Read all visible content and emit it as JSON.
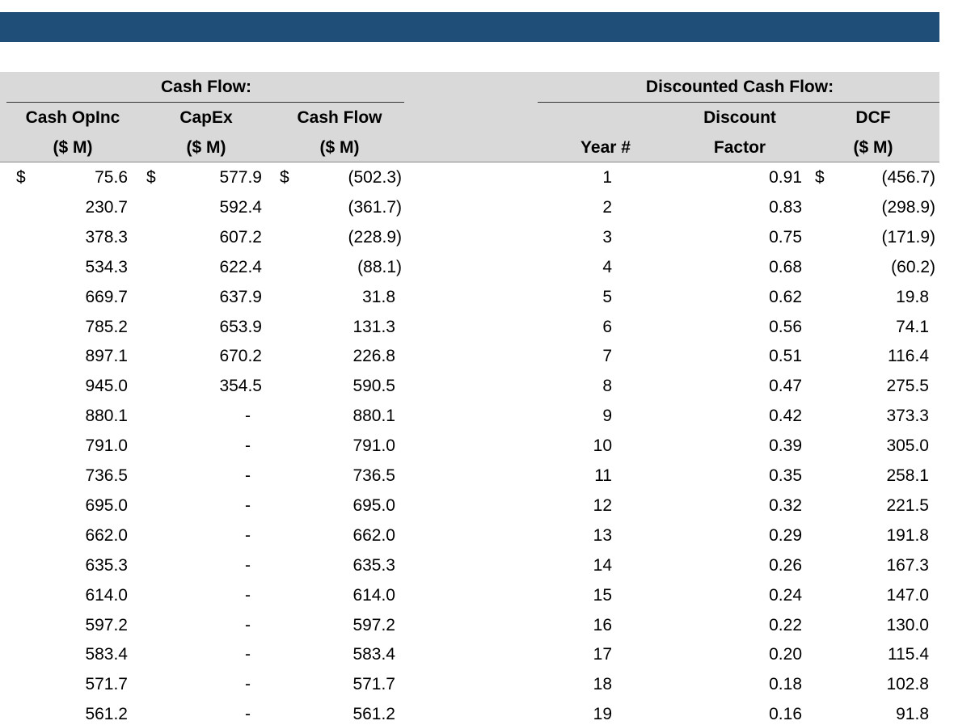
{
  "header": {
    "groups": [
      "Cash Flow:",
      "Discounted Cash Flow:"
    ]
  },
  "table": {
    "columns": [
      [
        "Cash OpInc",
        "($ M)"
      ],
      [
        "CapEx",
        "($ M)"
      ],
      [
        "Cash Flow",
        "($ M)"
      ],
      [
        "Year #"
      ],
      [
        "Discount",
        "Factor"
      ],
      [
        "DCF",
        "($ M)"
      ]
    ],
    "dollar_signs": [
      "$",
      "$",
      "$",
      "$"
    ],
    "rows": [
      [
        "75.6",
        "577.9",
        "(502.3)",
        "1",
        "0.91",
        "(456.7)"
      ],
      [
        "230.7",
        "592.4",
        "(361.7)",
        "2",
        "0.83",
        "(298.9)"
      ],
      [
        "378.3",
        "607.2",
        "(228.9)",
        "3",
        "0.75",
        "(171.9)"
      ],
      [
        "534.3",
        "622.4",
        "(88.1)",
        "4",
        "0.68",
        "(60.2)"
      ],
      [
        "669.7",
        "637.9",
        "31.8",
        "5",
        "0.62",
        "19.8"
      ],
      [
        "785.2",
        "653.9",
        "131.3",
        "6",
        "0.56",
        "74.1"
      ],
      [
        "897.1",
        "670.2",
        "226.8",
        "7",
        "0.51",
        "116.4"
      ],
      [
        "945.0",
        "354.5",
        "590.5",
        "8",
        "0.47",
        "275.5"
      ],
      [
        "880.1",
        "-",
        "880.1",
        "9",
        "0.42",
        "373.3"
      ],
      [
        "791.0",
        "-",
        "791.0",
        "10",
        "0.39",
        "305.0"
      ],
      [
        "736.5",
        "-",
        "736.5",
        "11",
        "0.35",
        "258.1"
      ],
      [
        "695.0",
        "-",
        "695.0",
        "12",
        "0.32",
        "221.5"
      ],
      [
        "662.0",
        "-",
        "662.0",
        "13",
        "0.29",
        "191.8"
      ],
      [
        "635.3",
        "-",
        "635.3",
        "14",
        "0.26",
        "167.3"
      ],
      [
        "614.0",
        "-",
        "614.0",
        "15",
        "0.24",
        "147.0"
      ],
      [
        "597.2",
        "-",
        "597.2",
        "16",
        "0.22",
        "130.0"
      ],
      [
        "583.4",
        "-",
        "583.4",
        "17",
        "0.20",
        "115.4"
      ],
      [
        "571.7",
        "-",
        "571.7",
        "18",
        "0.18",
        "102.8"
      ],
      [
        "561.2",
        "-",
        "561.2",
        "19",
        "0.16",
        "91.8"
      ]
    ]
  }
}
